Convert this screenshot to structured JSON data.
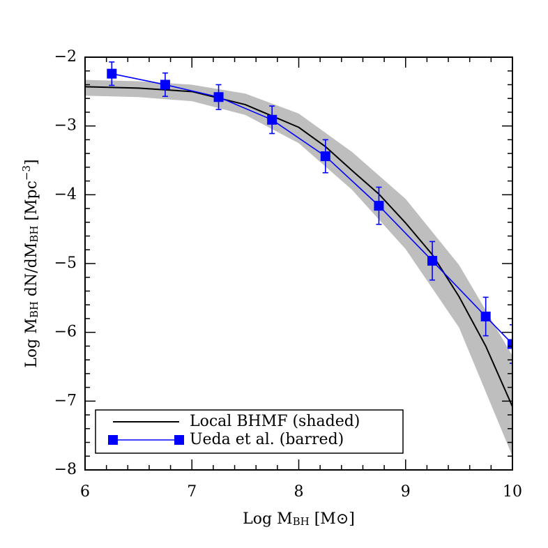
{
  "chart_data": {
    "type": "line",
    "xlabel": [
      "Log M",
      "BH",
      " [M",
      "⊙",
      "]"
    ],
    "ylabel": [
      "Log M",
      "BH",
      " dN/dM",
      "BH",
      " [Mpc",
      "−3",
      "]"
    ],
    "xlim": [
      6,
      10
    ],
    "ylim": [
      -8,
      -2
    ],
    "xticks": [
      6,
      7,
      8,
      9,
      10
    ],
    "yticks": [
      {
        "value": -8,
        "label": "−8"
      },
      {
        "value": -7,
        "label": "−7"
      },
      {
        "value": -6,
        "label": "−6"
      },
      {
        "value": -5,
        "label": "−5"
      },
      {
        "value": -4,
        "label": "−4"
      },
      {
        "value": -3,
        "label": "−3"
      },
      {
        "value": -2,
        "label": "−2"
      }
    ],
    "xminorticks": [
      6.2,
      6.4,
      6.6,
      6.8,
      7.2,
      7.4,
      7.6,
      7.8,
      8.2,
      8.4,
      8.6,
      8.8,
      9.2,
      9.4,
      9.6,
      9.8
    ],
    "yminorticks": [
      -7.8,
      -7.6,
      -7.4,
      -7.2,
      -6.8,
      -6.6,
      -6.4,
      -6.2,
      -5.8,
      -5.6,
      -5.4,
      -5.2,
      -4.8,
      -4.6,
      -4.4,
      -4.2,
      -3.8,
      -3.6,
      -3.4,
      -3.2,
      -2.8,
      -2.6,
      -2.4,
      -2.2
    ],
    "band": {
      "color": "#bebebe",
      "x": [
        6,
        6.5,
        7,
        7.5,
        8,
        8.5,
        9,
        9.5,
        10
      ],
      "lower": [
        -2.56,
        -2.58,
        -2.64,
        -2.84,
        -3.25,
        -3.93,
        -4.79,
        -5.93,
        -7.8
      ],
      "upper": [
        -2.33,
        -2.35,
        -2.4,
        -2.53,
        -2.82,
        -3.38,
        -4.06,
        -5.02,
        -6.34
      ]
    },
    "series": [
      {
        "name": "Local BHMF (shaded)",
        "color": "#000000",
        "x": [
          6,
          6.5,
          7,
          7.5,
          8,
          8.25,
          8.5,
          8.75,
          9,
          9.25,
          9.5,
          9.75,
          10
        ],
        "values": [
          -2.43,
          -2.45,
          -2.5,
          -2.69,
          -3.02,
          -3.3,
          -3.65,
          -3.99,
          -4.41,
          -4.87,
          -5.48,
          -6.2,
          -7.08
        ]
      },
      {
        "name": "Ueda et al. (barred)",
        "color": "#0000ff",
        "x": [
          6.25,
          6.75,
          7.25,
          7.75,
          8.25,
          8.75,
          9.25,
          9.75,
          10
        ],
        "values": [
          -2.24,
          -2.4,
          -2.58,
          -2.91,
          -3.44,
          -4.16,
          -4.96,
          -5.77,
          -6.17
        ],
        "errors": [
          0.17,
          0.17,
          0.18,
          0.2,
          0.24,
          0.27,
          0.28,
          0.28,
          0.28
        ]
      }
    ]
  }
}
